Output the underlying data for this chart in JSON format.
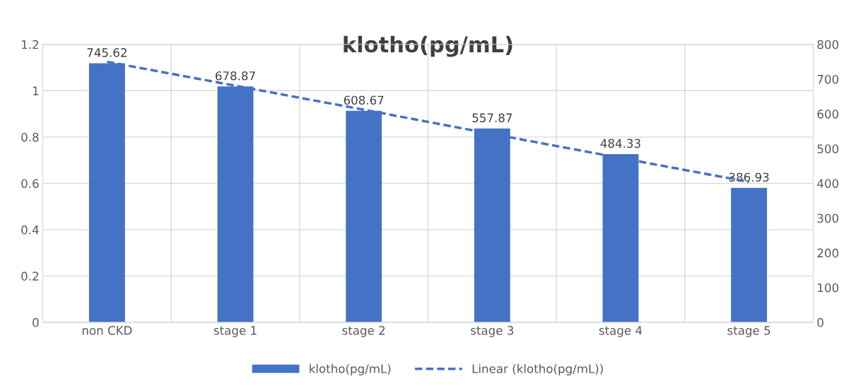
{
  "chart_data": {
    "type": "bar",
    "title": "klotho(pg/mL)",
    "categories": [
      "non CKD",
      "stage 1",
      "stage 2",
      "stage 3",
      "stage 4",
      "stage 5"
    ],
    "series": [
      {
        "name": "klotho(pg/mL)",
        "color": "#4472c4",
        "axis": "y2",
        "values": [
          745.62,
          678.87,
          608.67,
          557.87,
          484.33,
          386.93
        ],
        "data_labels": true
      },
      {
        "name": "Linear (klotho(pg/mL))",
        "type": "line",
        "color": "#4472c4",
        "axis": "y2",
        "line_style": "dashed",
        "marker": "none",
        "values": [
          750,
          681,
          612,
          542,
          473,
          404
        ]
      }
    ],
    "ylim": [
      0,
      1.2
    ],
    "yticks": [
      0,
      0.2,
      0.4,
      0.6,
      0.8,
      1,
      1.2
    ],
    "y2lim": [
      0,
      800
    ],
    "y2ticks": [
      0,
      100,
      200,
      300,
      400,
      500,
      600,
      700,
      800
    ],
    "grid": true,
    "legend": "bottom"
  }
}
